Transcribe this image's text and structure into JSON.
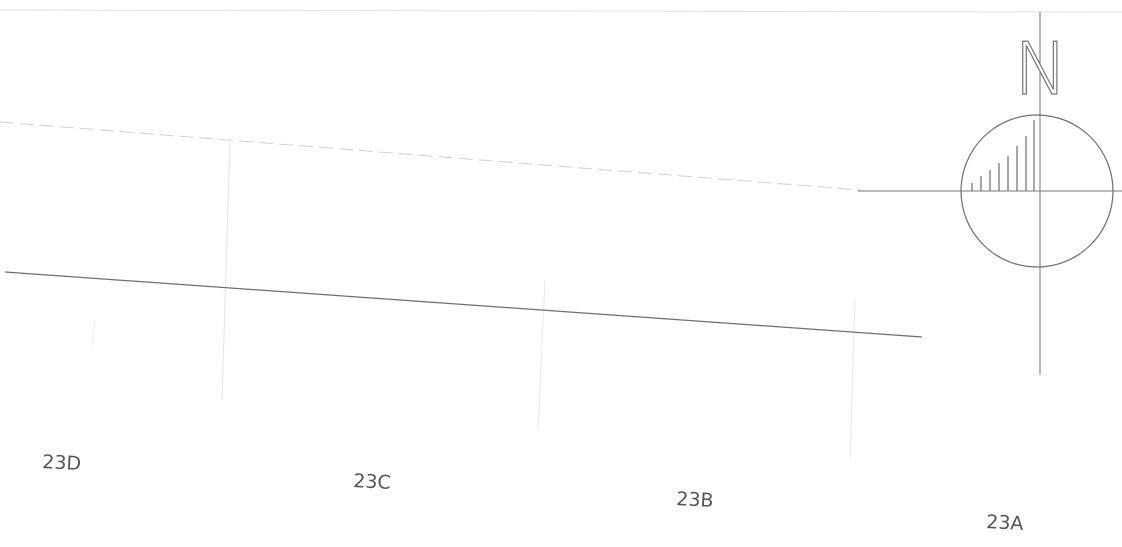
{
  "north_arrow": {
    "letter": "N",
    "icon": "north-arrow-icon"
  },
  "lots": [
    {
      "label": "23D"
    },
    {
      "label": "23C"
    },
    {
      "label": "23B"
    },
    {
      "label": "23A"
    }
  ],
  "colors": {
    "line": "#6e6e6e",
    "faint_line": "#d9d9d9",
    "text": "#555555"
  }
}
